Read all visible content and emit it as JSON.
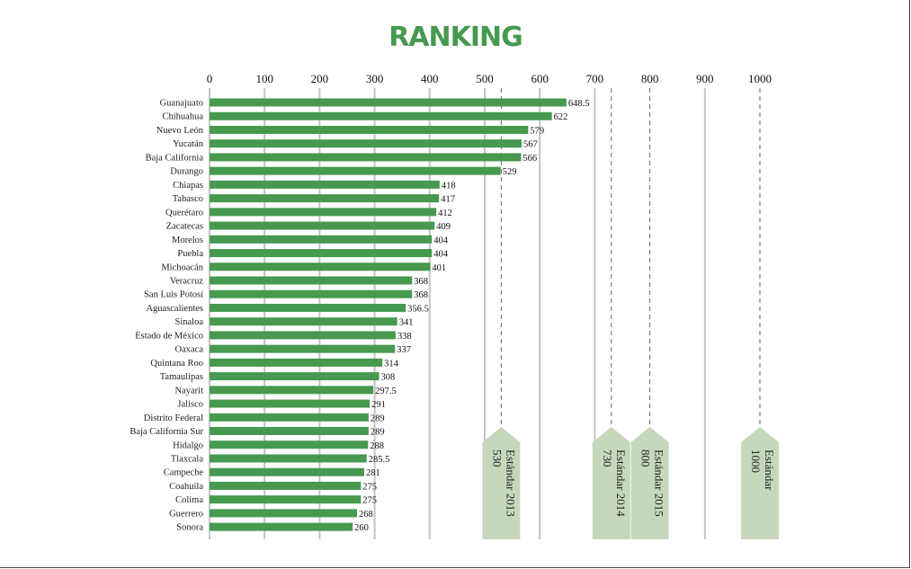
{
  "chart_data": {
    "type": "bar",
    "orientation": "horizontal",
    "title": "RANKING",
    "xlim": [
      0,
      1000
    ],
    "xticks": [
      0,
      100,
      200,
      300,
      400,
      500,
      600,
      700,
      800,
      900,
      1000
    ],
    "grid": true,
    "bar_color": "#46994f",
    "categories": [
      "Guanajuato",
      "Chihuahua",
      "Nuevo León",
      "Yucatán",
      "Baja California",
      "Durango",
      "Chiapas",
      "Tabasco",
      "Querétaro",
      "Zacatecas",
      "Morelos",
      "Puebla",
      "Michoacán",
      "Veracruz",
      "San Luis Potosí",
      "Aguascalientes",
      "Sinaloa",
      "Estado de México",
      "Oaxaca",
      "Quintana Roo",
      "Tamaulipas",
      "Nayarit",
      "Jalisco",
      "Distrito Federal",
      "Baja California Sur",
      "Hidalgo",
      "Tlaxcala",
      "Campeche",
      "Coahuila",
      "Colima",
      "Guerrero",
      "Sonora"
    ],
    "values": [
      648.5,
      622,
      579,
      567,
      566,
      529,
      418,
      417,
      412,
      409,
      404,
      404,
      401,
      368,
      368,
      356.5,
      341,
      338,
      337,
      314,
      308,
      297.5,
      291,
      289,
      289,
      288,
      285.5,
      281,
      275,
      275,
      268,
      260
    ],
    "value_labels": [
      "648.5",
      "622",
      "579",
      "567",
      "566",
      "529",
      "418",
      "417",
      "412",
      "409",
      "404",
      "404",
      "401",
      "368",
      "368",
      "356.5",
      "341",
      "338",
      "337",
      "314",
      "308",
      "297.5",
      "291",
      "289",
      "289",
      "288",
      "285.5",
      "281",
      "275",
      "275",
      "268",
      "260"
    ],
    "reference_lines": [
      {
        "value": 530,
        "label": "Estándar 2013",
        "value_label": "530"
      },
      {
        "value": 730,
        "label": "Estándar 2014",
        "value_label": "730"
      },
      {
        "value": 800,
        "label": "Estándar 2015",
        "value_label": "800"
      },
      {
        "value": 1000,
        "label": "Estándar",
        "value_label": "1000"
      }
    ],
    "tag_color": "#c6d8bb"
  }
}
